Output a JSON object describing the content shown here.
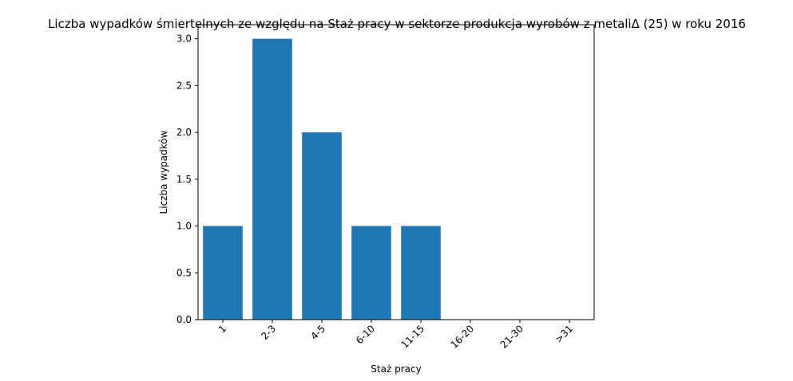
{
  "chart_data": {
    "type": "bar",
    "title": "Liczba wypadków śmiertelnych ze względu na Staż pracy w sektorze produkcja wyrobów z metaliΔ (25) w roku 2016",
    "xlabel": "Staż pracy",
    "ylabel": "Liczba wypadków",
    "categories": [
      "1",
      "2-3",
      "4-5",
      "6-10",
      "11-15",
      "16-20",
      "21-30",
      ">31"
    ],
    "values": [
      1,
      3,
      2,
      1,
      1,
      0,
      0,
      0
    ],
    "ylim": [
      0,
      3.15
    ],
    "yticks": [
      "0.0",
      "0.5",
      "1.0",
      "1.5",
      "2.0",
      "2.5",
      "3.0"
    ],
    "bar_color": "#1f77b4",
    "grid": false,
    "legend": "none"
  }
}
